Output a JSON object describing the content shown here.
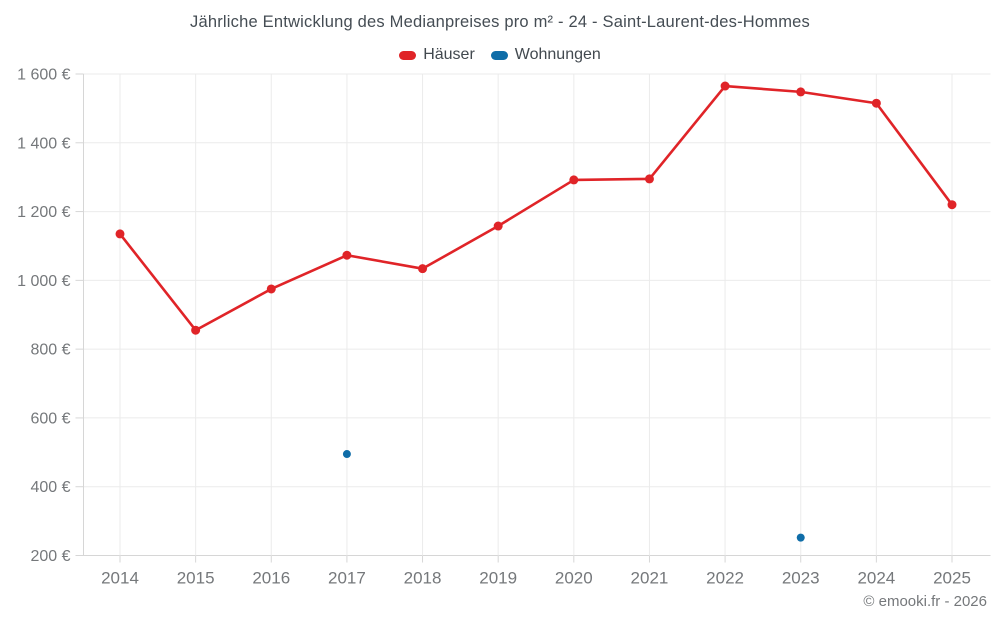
{
  "header": {
    "title": "Jährliche Entwicklung des Medianpreises pro m² - 24 - Saint-Laurent-des-Hommes"
  },
  "legend": {
    "items": [
      {
        "label": "Häuser",
        "color": "#e02428"
      },
      {
        "label": "Wohnungen",
        "color": "#0f6da8"
      }
    ]
  },
  "footer": {
    "copyright": "© emooki.fr - 2026"
  },
  "colors": {
    "grid": "#ebebeb",
    "axis": "#d6d6d6",
    "tick_label": "#75787b",
    "hauser_red": "#e02428",
    "wohnungen_blue": "#0f6da8"
  },
  "chart_data": {
    "type": "line",
    "title": "Jährliche Entwicklung des Medianpreises pro m² - 24 - Saint-Laurent-des-Hommes",
    "categories": [
      "2014",
      "2015",
      "2016",
      "2017",
      "2018",
      "2019",
      "2020",
      "2021",
      "2022",
      "2023",
      "2024",
      "2025"
    ],
    "series": [
      {
        "name": "Häuser",
        "color": "#e02428",
        "values": [
          1135,
          855,
          975,
          1073,
          1034,
          1158,
          1292,
          1295,
          1565,
          1548,
          1515,
          1220
        ]
      },
      {
        "name": "Wohnungen",
        "color": "#0f6da8",
        "values": [
          null,
          null,
          null,
          495,
          null,
          null,
          null,
          null,
          null,
          252,
          null,
          null
        ]
      }
    ],
    "xlabel": "",
    "ylabel": "",
    "ylim": [
      200,
      1600
    ],
    "ytick_step": 200,
    "y_suffix": " €",
    "grid": true,
    "legend_position": "top"
  }
}
